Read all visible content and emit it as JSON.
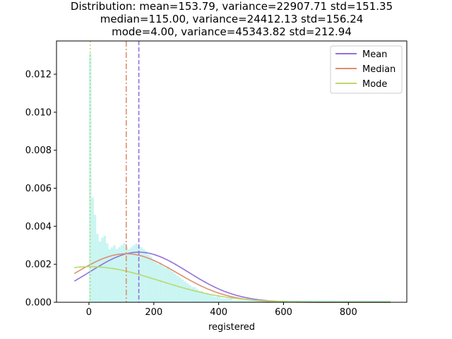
{
  "chart_data": {
    "type": "bar",
    "title_lines": [
      "Distribution: mean=153.79, variance=22907.71 std=151.35",
      "median=115.00, variance=24412.13 std=156.24",
      "mode=4.00, variance=45343.82 std=212.94"
    ],
    "xlabel": "registered",
    "ylabel": "",
    "xlim": [
      -100,
      980
    ],
    "ylim": [
      0,
      0.01375
    ],
    "x_ticks": [
      0,
      200,
      400,
      600,
      800
    ],
    "y_ticks": [
      0.0,
      0.002,
      0.004,
      0.006,
      0.008,
      0.01,
      0.012
    ],
    "y_tick_labels": [
      "0.000",
      "0.002",
      "0.004",
      "0.006",
      "0.008",
      "0.010",
      "0.012"
    ],
    "grid": false,
    "legend_position": "top-right",
    "histogram": {
      "color": "#c9f5f2",
      "bin_start": 0,
      "bin_width": 7.5,
      "values": [
        0.0131,
        0.0055,
        0.0046,
        0.0036,
        0.0032,
        0.0034,
        0.0035,
        0.0031,
        0.0028,
        0.0029,
        0.003,
        0.0028,
        0.0029,
        0.003,
        0.0031,
        0.0029,
        0.0028,
        0.0029,
        0.003,
        0.0031,
        0.003,
        0.0029,
        0.0028,
        0.0027,
        0.0025,
        0.0024,
        0.0022,
        0.0021,
        0.002,
        0.0021,
        0.0019,
        0.0018,
        0.0019,
        0.0017,
        0.0016,
        0.0015,
        0.0014,
        0.0013,
        0.0012,
        0.0011,
        0.001,
        0.0009,
        0.0008,
        0.0008,
        0.0007,
        0.0006,
        0.0006,
        0.0005,
        0.0005,
        0.0004,
        0.0004,
        0.0003,
        0.0003,
        0.0003,
        0.0002,
        0.0002,
        0.0002,
        0.0002,
        0.0002,
        0.0001,
        0.0001,
        0.0001,
        0.0001,
        0.0001,
        0.0001,
        0.0001,
        0.0001,
        0.0001,
        0.0001,
        0.0001,
        0.0001,
        0.0001,
        0.0001,
        0.0001,
        0.0001,
        0.0001,
        0.0001,
        0.0001,
        0.0001,
        0.0001,
        0.0001,
        0.0001,
        0.0001,
        0.0001,
        0.0001,
        0.0001,
        0.0001,
        0.0001,
        0.0001,
        0.0001,
        0.0001,
        0.0001,
        0.0001,
        0.0001,
        0.0001,
        0.0001,
        0.0001,
        0.0001,
        0.0001,
        0.0001,
        0.0001,
        0.0001,
        0.0001,
        0.0001,
        0.0001,
        0.0001,
        0.0001,
        0.0001,
        0.0001,
        0.0001,
        0.0001,
        0.0001,
        0.0001,
        0.0001,
        0.0001,
        0.0001,
        0.0001,
        0.0001,
        0.0001,
        0.0001,
        0.0001,
        0.0001,
        0.0001,
        0.0001
      ]
    },
    "series": [
      {
        "name": "Mean",
        "mean": 153.79,
        "std": 151.35,
        "color": "#9370db",
        "vline_x": 153.79,
        "vline_style": "dashed"
      },
      {
        "name": "Median",
        "mean": 115.0,
        "std": 156.24,
        "color": "#dd8f6f",
        "vline_x": 115.0,
        "vline_style": "dashdot"
      },
      {
        "name": "Mode",
        "mean": 4.0,
        "std": 212.94,
        "color": "#b9d96d",
        "vline_x": 4.0,
        "vline_style": "dotted"
      }
    ],
    "curve_x_range": [
      -45,
      930
    ]
  }
}
